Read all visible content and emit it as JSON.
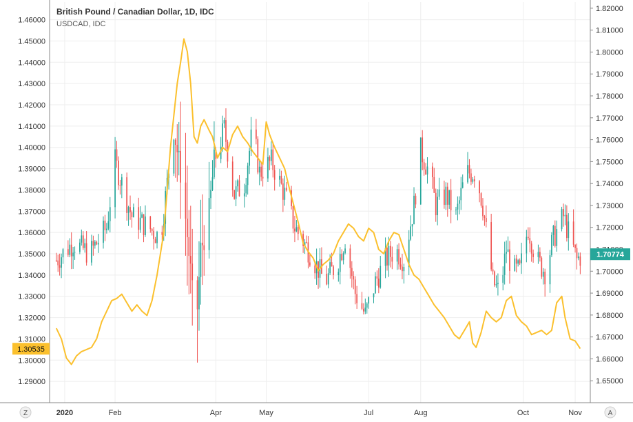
{
  "legend": {
    "title": "British Pound / Canadian Dollar, 1D, IDC",
    "secondary": "USDCAD, IDC"
  },
  "buttons": {
    "z": "Z",
    "a": "A"
  },
  "colors": {
    "up": "#26a69a",
    "down": "#ef5350",
    "line": "#fbc02d",
    "grid": "#eeeeee",
    "axis": "#888888",
    "text": "#333333"
  },
  "chart_data": {
    "type": "line",
    "title": "British Pound / Canadian Dollar, 1D, IDC",
    "subtitle": "USDCAD, IDC",
    "grid": true,
    "legend_position": "top-left",
    "x_axis": {
      "ticks": [
        {
          "label": "2020",
          "day": 5
        },
        {
          "label": "Feb",
          "day": 35
        },
        {
          "label": "Apr",
          "day": 95
        },
        {
          "label": "May",
          "day": 125
        },
        {
          "label": "Jul",
          "day": 186
        },
        {
          "label": "Aug",
          "day": 217
        },
        {
          "label": "Oct",
          "day": 278
        },
        {
          "label": "Nov",
          "day": 309
        }
      ],
      "range": [
        -4,
        318
      ]
    },
    "left_axis": {
      "series": "USDCAD",
      "range": [
        1.28,
        1.46829
      ],
      "ticks": [
        "1.29000",
        "1.30000",
        "1.31000",
        "1.32000",
        "1.33000",
        "1.34000",
        "1.35000",
        "1.36000",
        "1.37000",
        "1.38000",
        "1.39000",
        "1.40000",
        "1.41000",
        "1.42000",
        "1.43000",
        "1.44000",
        "1.45000",
        "1.46000"
      ],
      "last_value": "1.30535"
    },
    "right_axis": {
      "series": "GBPCAD",
      "range": [
        1.64,
        1.8228
      ],
      "ticks": [
        "1.65000",
        "1.66000",
        "1.67000",
        "1.68000",
        "1.69000",
        "1.70000",
        "1.71000",
        "1.72000",
        "1.73000",
        "1.74000",
        "1.75000",
        "1.76000",
        "1.77000",
        "1.78000",
        "1.79000",
        "1.80000",
        "1.81000",
        "1.82000"
      ],
      "last_value": "1.70774"
    },
    "series": [
      {
        "name": "British Pound / Canadian Dollar",
        "kind": "candlestick",
        "axis": "right",
        "key_closes": [
          [
            0,
            1.705
          ],
          [
            10,
            1.713
          ],
          [
            20,
            1.708
          ],
          [
            30,
            1.72
          ],
          [
            35,
            1.75
          ],
          [
            45,
            1.725
          ],
          [
            55,
            1.72
          ],
          [
            62,
            1.715
          ],
          [
            70,
            1.765
          ],
          [
            75,
            1.74
          ],
          [
            80,
            1.7
          ],
          [
            83,
            1.67
          ],
          [
            86,
            1.71
          ],
          [
            90,
            1.72
          ],
          [
            94,
            1.75
          ],
          [
            100,
            1.765
          ],
          [
            106,
            1.735
          ],
          [
            112,
            1.74
          ],
          [
            117,
            1.765
          ],
          [
            121,
            1.745
          ],
          [
            128,
            1.75
          ],
          [
            136,
            1.735
          ],
          [
            142,
            1.72
          ],
          [
            150,
            1.71
          ],
          [
            160,
            1.695
          ],
          [
            168,
            1.705
          ],
          [
            172,
            1.715
          ],
          [
            178,
            1.69
          ],
          [
            184,
            1.68
          ],
          [
            190,
            1.695
          ],
          [
            196,
            1.705
          ],
          [
            202,
            1.71
          ],
          [
            207,
            1.705
          ],
          [
            213,
            1.73
          ],
          [
            217,
            1.755
          ],
          [
            222,
            1.745
          ],
          [
            226,
            1.73
          ],
          [
            232,
            1.735
          ],
          [
            238,
            1.725
          ],
          [
            244,
            1.745
          ],
          [
            250,
            1.745
          ],
          [
            254,
            1.73
          ],
          [
            260,
            1.695
          ],
          [
            264,
            1.69
          ],
          [
            268,
            1.71
          ],
          [
            272,
            1.7
          ],
          [
            276,
            1.7
          ],
          [
            281,
            1.72
          ],
          [
            286,
            1.705
          ],
          [
            291,
            1.7
          ],
          [
            296,
            1.715
          ],
          [
            302,
            1.725
          ],
          [
            306,
            1.715
          ],
          [
            310,
            1.705
          ],
          [
            313,
            1.7077
          ]
        ]
      },
      {
        "name": "USDCAD",
        "kind": "line",
        "axis": "left",
        "points": [
          [
            0,
            1.315
          ],
          [
            3,
            1.31
          ],
          [
            6,
            1.301
          ],
          [
            9,
            1.298
          ],
          [
            12,
            1.302
          ],
          [
            15,
            1.304
          ],
          [
            18,
            1.305
          ],
          [
            21,
            1.306
          ],
          [
            24,
            1.31
          ],
          [
            27,
            1.318
          ],
          [
            30,
            1.323
          ],
          [
            33,
            1.328
          ],
          [
            36,
            1.329
          ],
          [
            39,
            1.331
          ],
          [
            42,
            1.327
          ],
          [
            45,
            1.323
          ],
          [
            48,
            1.326
          ],
          [
            51,
            1.323
          ],
          [
            54,
            1.321
          ],
          [
            57,
            1.328
          ],
          [
            60,
            1.34
          ],
          [
            62,
            1.35
          ],
          [
            64,
            1.36
          ],
          [
            66,
            1.38
          ],
          [
            68,
            1.4
          ],
          [
            70,
            1.415
          ],
          [
            72,
            1.43
          ],
          [
            74,
            1.44
          ],
          [
            76,
            1.451
          ],
          [
            78,
            1.445
          ],
          [
            80,
            1.43
          ],
          [
            82,
            1.405
          ],
          [
            84,
            1.402
          ],
          [
            86,
            1.41
          ],
          [
            88,
            1.413
          ],
          [
            91,
            1.408
          ],
          [
            93,
            1.405
          ],
          [
            96,
            1.395
          ],
          [
            99,
            1.4
          ],
          [
            102,
            1.398
          ],
          [
            105,
            1.406
          ],
          [
            108,
            1.41
          ],
          [
            111,
            1.405
          ],
          [
            114,
            1.402
          ],
          [
            117,
            1.398
          ],
          [
            120,
            1.395
          ],
          [
            123,
            1.392
          ],
          [
            125,
            1.412
          ],
          [
            127,
            1.406
          ],
          [
            130,
            1.4
          ],
          [
            133,
            1.395
          ],
          [
            136,
            1.39
          ],
          [
            139,
            1.38
          ],
          [
            141,
            1.374
          ],
          [
            144,
            1.365
          ],
          [
            147,
            1.355
          ],
          [
            150,
            1.351
          ],
          [
            153,
            1.348
          ],
          [
            156,
            1.342
          ],
          [
            159,
            1.345
          ],
          [
            162,
            1.347
          ],
          [
            165,
            1.35
          ],
          [
            168,
            1.356
          ],
          [
            171,
            1.36
          ],
          [
            174,
            1.364
          ],
          [
            177,
            1.362
          ],
          [
            180,
            1.358
          ],
          [
            183,
            1.356
          ],
          [
            186,
            1.362
          ],
          [
            189,
            1.36
          ],
          [
            192,
            1.352
          ],
          [
            195,
            1.35
          ],
          [
            198,
            1.356
          ],
          [
            201,
            1.36
          ],
          [
            204,
            1.359
          ],
          [
            207,
            1.352
          ],
          [
            210,
            1.345
          ],
          [
            213,
            1.34
          ],
          [
            216,
            1.338
          ],
          [
            219,
            1.334
          ],
          [
            222,
            1.33
          ],
          [
            225,
            1.326
          ],
          [
            228,
            1.323
          ],
          [
            231,
            1.32
          ],
          [
            234,
            1.316
          ],
          [
            237,
            1.312
          ],
          [
            240,
            1.31
          ],
          [
            243,
            1.314
          ],
          [
            246,
            1.318
          ],
          [
            248,
            1.308
          ],
          [
            250,
            1.306
          ],
          [
            253,
            1.313
          ],
          [
            256,
            1.323
          ],
          [
            259,
            1.32
          ],
          [
            262,
            1.318
          ],
          [
            265,
            1.32
          ],
          [
            268,
            1.328
          ],
          [
            271,
            1.33
          ],
          [
            274,
            1.321
          ],
          [
            277,
            1.318
          ],
          [
            280,
            1.316
          ],
          [
            283,
            1.312
          ],
          [
            286,
            1.313
          ],
          [
            289,
            1.314
          ],
          [
            292,
            1.312
          ],
          [
            295,
            1.314
          ],
          [
            298,
            1.327
          ],
          [
            301,
            1.33
          ],
          [
            303,
            1.32
          ],
          [
            306,
            1.31
          ],
          [
            309,
            1.309
          ],
          [
            312,
            1.3054
          ]
        ]
      }
    ]
  }
}
